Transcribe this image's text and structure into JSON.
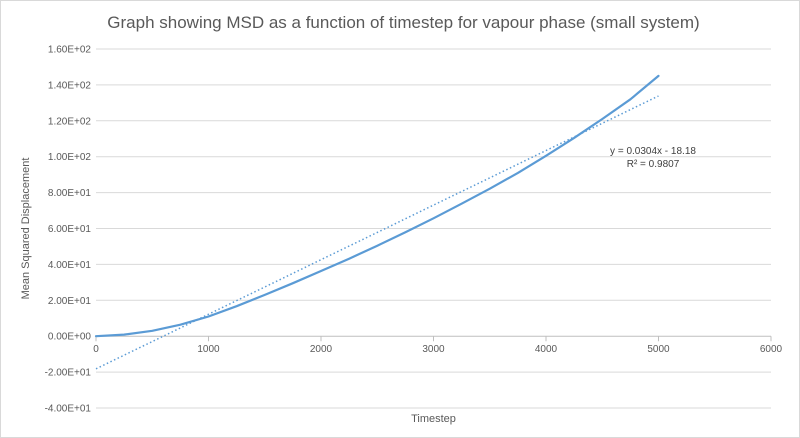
{
  "chart_data": {
    "type": "scatter",
    "title": "Graph showing MSD as a function of timestep for vapour phase (small system)",
    "xlabel": "Timestep",
    "ylabel": "Mean Squared Displacement",
    "xlim": [
      0,
      6000
    ],
    "ylim": [
      -40,
      160
    ],
    "x_ticks": [
      0,
      1000,
      2000,
      3000,
      4000,
      5000,
      6000
    ],
    "y_ticks": [
      -40,
      -20,
      0,
      20,
      40,
      60,
      80,
      100,
      120,
      140,
      160
    ],
    "x_tick_labels": [
      "0",
      "1000",
      "2000",
      "3000",
      "4000",
      "5000",
      "6000"
    ],
    "y_tick_labels": [
      "-4.00E+01",
      "-2.00E+01",
      "0.00E+00",
      "2.00E+01",
      "4.00E+01",
      "6.00E+01",
      "8.00E+01",
      "1.00E+02",
      "1.20E+02",
      "1.40E+02",
      "1.60E+02"
    ],
    "grid": "horizontal",
    "legend": "none",
    "series": [
      {
        "type": "line",
        "color": "#5b9bd5",
        "x": [
          0,
          250,
          500,
          750,
          1000,
          1250,
          1500,
          1750,
          2000,
          2250,
          2500,
          2750,
          3000,
          3250,
          3500,
          3750,
          4000,
          4250,
          4500,
          4750,
          5000
        ],
        "y": [
          0,
          0.9,
          3.0,
          6.4,
          11.0,
          16.7,
          23.0,
          29.5,
          36.3,
          43.2,
          50.4,
          57.9,
          65.7,
          73.8,
          82.2,
          91.0,
          100.5,
          110.5,
          121.0,
          132.0,
          145.0
        ]
      },
      {
        "type": "trendline",
        "style": "dotted",
        "color": "#5b9bd5",
        "slope": 0.0304,
        "intercept": -18.18,
        "x_range": [
          0,
          5000
        ]
      }
    ],
    "annotations": [
      "y = 0.0304x - 18.18",
      "R² = 0.9807"
    ]
  }
}
